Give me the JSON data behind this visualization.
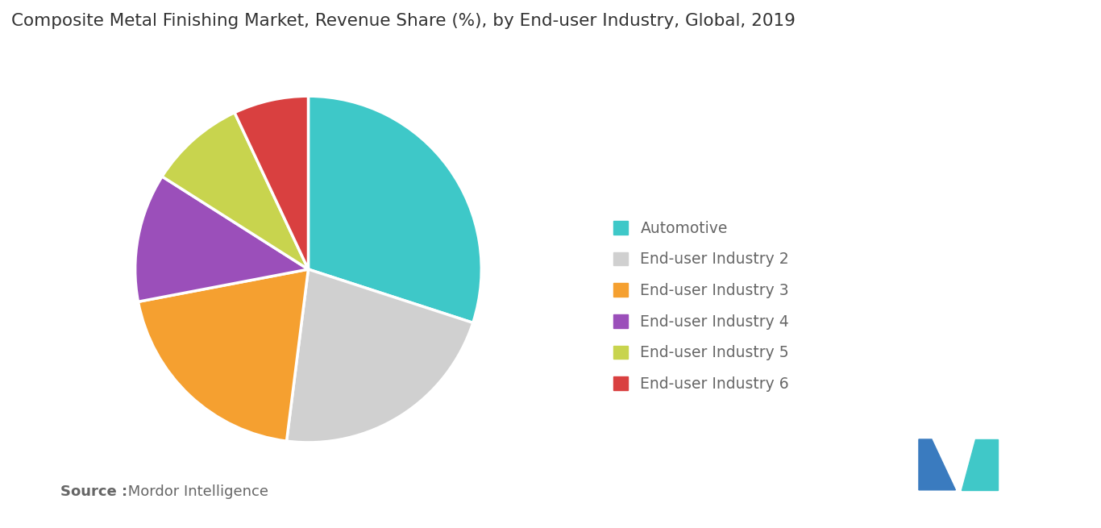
{
  "title": "Composite Metal Finishing Market, Revenue Share (%), by End-user Industry, Global, 2019",
  "labels": [
    "Automotive",
    "End-user Industry 2",
    "End-user Industry 3",
    "End-user Industry 4",
    "End-user Industry 5",
    "End-user Industry 6"
  ],
  "sizes": [
    30,
    22,
    20,
    12,
    9,
    7
  ],
  "colors": [
    "#3ec8c8",
    "#d0d0d0",
    "#f5a030",
    "#9b4fba",
    "#c8d44e",
    "#d94040"
  ],
  "startangle": 90,
  "source_bold": "Source :",
  "source_rest": " Mordor Intelligence",
  "title_fontsize": 15.5,
  "legend_fontsize": 13.5,
  "source_fontsize": 13,
  "background_color": "#ffffff",
  "logo_left_color": "#3a7bbf",
  "logo_right_color": "#40c8c8"
}
